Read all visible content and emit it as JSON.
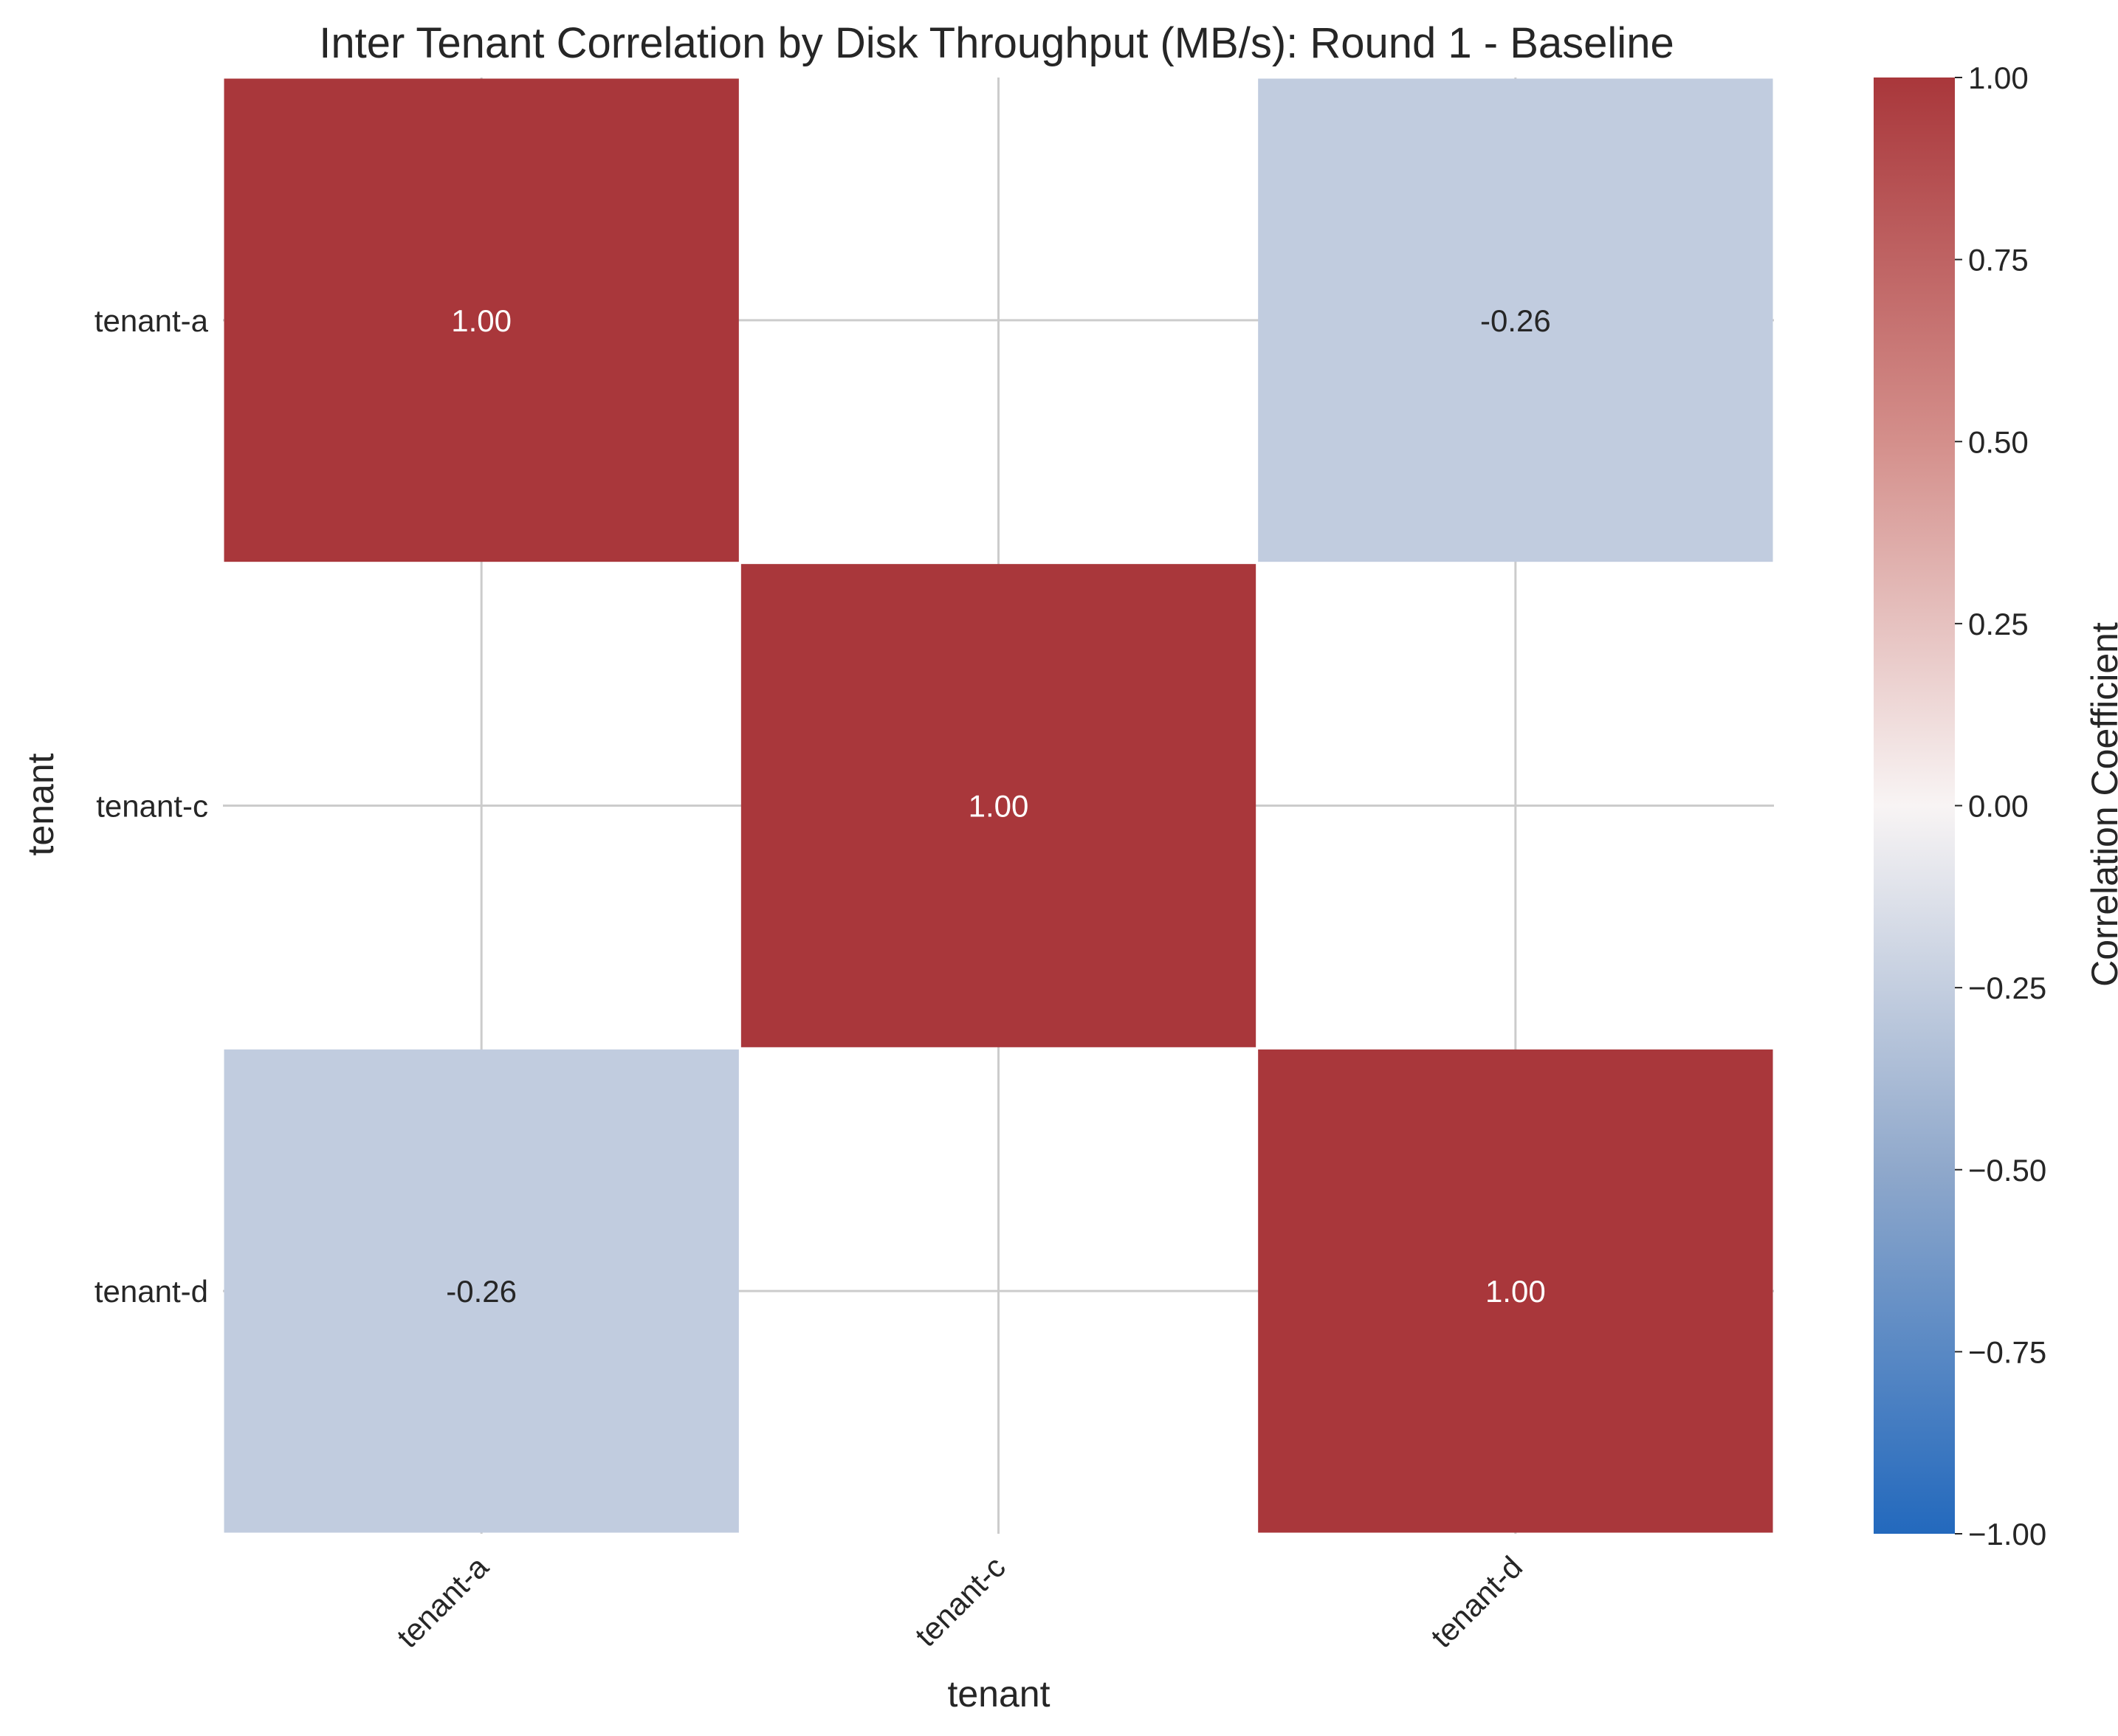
{
  "chart_data": {
    "type": "heatmap",
    "title": "Inter Tenant Correlation by Disk Throughput (MB/s): Round 1 - Baseline",
    "xlabel": "tenant",
    "ylabel": "tenant",
    "x_categories": [
      "tenant-a",
      "tenant-c",
      "tenant-d"
    ],
    "y_categories": [
      "tenant-a",
      "tenant-c",
      "tenant-d"
    ],
    "values": [
      [
        1.0,
        null,
        -0.26
      ],
      [
        null,
        1.0,
        null
      ],
      [
        -0.26,
        null,
        1.0
      ]
    ],
    "value_labels": [
      [
        "1.00",
        "",
        "-0.26"
      ],
      [
        "",
        "1.00",
        ""
      ],
      [
        "-0.26",
        "",
        "1.00"
      ]
    ],
    "colorbar": {
      "label": "Correlation Coefficient",
      "range": [
        -1.0,
        1.0
      ],
      "ticks": [
        1.0,
        0.75,
        0.5,
        0.25,
        0.0,
        -0.25,
        -0.5,
        -0.75,
        -1.0
      ],
      "tick_labels": [
        "1.00",
        "0.75",
        "0.50",
        "0.25",
        "0.00",
        "−0.25",
        "−0.50",
        "−0.75",
        "−1.00"
      ],
      "colormap": "vlag",
      "colors": {
        "low": "#2369bd",
        "mid": "#f8f4f4",
        "high": "#a9373b"
      }
    },
    "grid": true,
    "x_tick_rotation": "45-degree"
  }
}
